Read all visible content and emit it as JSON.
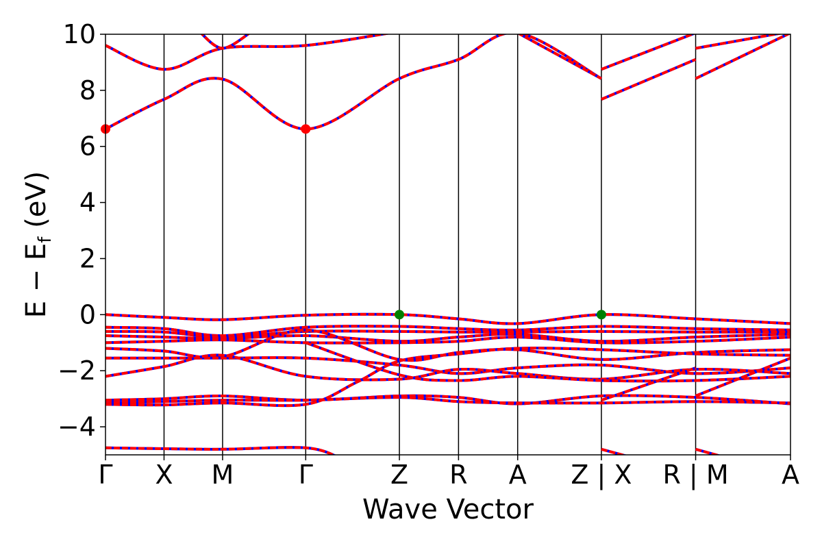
{
  "chart_data": {
    "type": "line",
    "title": "",
    "xlabel": "Wave Vector",
    "ylabel": "E − E_f (eV)",
    "ylabel_parts": {
      "main": "E − E",
      "sub": "f",
      "unit": " (eV)"
    },
    "ylim": [
      -5,
      10
    ],
    "yticks": [
      -4,
      -2,
      0,
      2,
      4,
      6,
      8,
      10
    ],
    "ytick_labels": [
      "−4",
      "−2",
      "0",
      "2",
      "4",
      "6",
      "8",
      "10"
    ],
    "xlim": [
      0,
      11.7
    ],
    "kpath": {
      "positions": [
        0,
        1,
        2,
        3.42,
        5.02,
        6.03,
        7.04,
        8.47,
        10.08,
        11.7
      ],
      "labels": [
        "Γ",
        "X",
        "M",
        "Γ",
        "Z",
        "R",
        "A",
        "Z | X",
        "R | M",
        "A"
      ]
    },
    "grid": false,
    "legend": "none",
    "colors": {
      "band_solid": "#0000ff",
      "band_dashed": "#ff0000",
      "cbm_marker": "#ff0000",
      "vbm_marker": "#008000",
      "kline": "#000000"
    },
    "markers": [
      {
        "x": 0,
        "y": 6.62,
        "kind": "cbm"
      },
      {
        "x": 3.42,
        "y": 6.62,
        "kind": "cbm"
      },
      {
        "x": 5.02,
        "y": 0.0,
        "kind": "vbm"
      },
      {
        "x": 8.47,
        "y": 0.0,
        "kind": "vbm"
      }
    ],
    "bands": [
      [
        [
          0,
          6.62
        ],
        [
          1,
          7.68
        ],
        [
          2,
          8.4
        ],
        [
          3.42,
          6.62
        ],
        [
          5.02,
          8.42
        ],
        [
          6.03,
          9.1
        ],
        [
          7.04,
          10.05
        ],
        [
          8.47,
          8.42
        ]
      ],
      [
        [
          0,
          9.6
        ],
        [
          1,
          8.75
        ],
        [
          2,
          9.5
        ],
        [
          3.42,
          9.6
        ],
        [
          5.02,
          10.1
        ]
      ],
      [
        [
          1.6,
          10.1
        ],
        [
          2,
          9.5
        ],
        [
          2.5,
          10.1
        ]
      ],
      [
        [
          7.04,
          10.05
        ],
        [
          8.47,
          8.42
        ]
      ],
      [
        [
          8.47,
          8.75
        ],
        [
          10.08,
          10.05
        ]
      ],
      [
        [
          8.47,
          7.68
        ],
        [
          10.08,
          9.1
        ]
      ],
      [
        [
          10.08,
          9.5
        ],
        [
          11.7,
          10.1
        ]
      ],
      [
        [
          10.08,
          8.42
        ],
        [
          11.7,
          10.05
        ]
      ],
      [
        [
          0,
          0.0
        ],
        [
          1,
          -0.1
        ],
        [
          2,
          -0.18
        ],
        [
          3.42,
          -0.02
        ],
        [
          5.02,
          0.0
        ],
        [
          6.03,
          -0.15
        ],
        [
          7.04,
          -0.32
        ],
        [
          8.47,
          0.0
        ],
        [
          10.08,
          -0.15
        ],
        [
          11.7,
          -0.32
        ]
      ],
      [
        [
          0,
          -0.45
        ],
        [
          1,
          -0.5
        ],
        [
          2,
          -0.75
        ],
        [
          3.42,
          -0.45
        ],
        [
          5.02,
          -0.42
        ],
        [
          6.03,
          -0.5
        ],
        [
          7.04,
          -0.55
        ],
        [
          8.47,
          -0.42
        ],
        [
          10.08,
          -0.5
        ],
        [
          11.7,
          -0.55
        ]
      ],
      [
        [
          0,
          -0.6
        ],
        [
          1,
          -0.62
        ],
        [
          2,
          -0.8
        ],
        [
          3.42,
          -0.6
        ],
        [
          5.02,
          -0.6
        ],
        [
          6.03,
          -0.62
        ],
        [
          7.04,
          -0.62
        ],
        [
          8.47,
          -0.6
        ],
        [
          10.08,
          -0.62
        ],
        [
          11.7,
          -0.62
        ]
      ],
      [
        [
          0,
          -0.75
        ],
        [
          1,
          -0.8
        ],
        [
          2,
          -0.85
        ],
        [
          3.42,
          -0.75
        ],
        [
          5.02,
          -0.95
        ],
        [
          6.03,
          -0.8
        ],
        [
          7.04,
          -0.7
        ],
        [
          8.47,
          -0.95
        ],
        [
          10.08,
          -0.8
        ],
        [
          11.7,
          -0.7
        ]
      ],
      [
        [
          0,
          -1.0
        ],
        [
          1,
          -0.95
        ],
        [
          2,
          -0.9
        ],
        [
          3.42,
          -1.0
        ],
        [
          5.02,
          -1.0
        ],
        [
          6.03,
          -0.95
        ],
        [
          7.04,
          -0.8
        ],
        [
          8.47,
          -1.0
        ],
        [
          10.08,
          -0.95
        ],
        [
          11.7,
          -0.8
        ]
      ],
      [
        [
          0,
          -1.2
        ],
        [
          1,
          -1.3
        ],
        [
          2,
          -1.5
        ],
        [
          3.42,
          -0.55
        ],
        [
          5.02,
          -1.6
        ],
        [
          6.03,
          -1.35
        ],
        [
          7.04,
          -1.25
        ],
        [
          8.47,
          -1.6
        ],
        [
          10.08,
          -1.35
        ],
        [
          11.7,
          -1.25
        ]
      ],
      [
        [
          0,
          -1.55
        ],
        [
          1,
          -1.55
        ],
        [
          2,
          -1.55
        ],
        [
          3.42,
          -1.55
        ],
        [
          5.02,
          -1.8
        ],
        [
          6.03,
          -2.1
        ],
        [
          7.04,
          -1.9
        ],
        [
          8.47,
          -1.8
        ],
        [
          10.08,
          -2.1
        ],
        [
          11.7,
          -1.9
        ]
      ],
      [
        [
          0,
          -2.2
        ],
        [
          1,
          -1.85
        ],
        [
          2,
          -1.45
        ],
        [
          3.42,
          -2.2
        ],
        [
          5.02,
          -2.3
        ],
        [
          6.03,
          -1.95
        ],
        [
          7.04,
          -2.1
        ],
        [
          8.47,
          -2.3
        ],
        [
          10.08,
          -1.95
        ],
        [
          11.7,
          -2.1
        ]
      ],
      [
        [
          3.42,
          -1.0
        ],
        [
          5.02,
          -2.15
        ],
        [
          6.03,
          -2.35
        ],
        [
          7.04,
          -2.2
        ],
        [
          8.47,
          -2.35
        ],
        [
          10.08,
          -2.35
        ],
        [
          11.7,
          -2.2
        ]
      ],
      [
        [
          0,
          -3.05
        ],
        [
          1,
          -3.0
        ],
        [
          2,
          -2.9
        ],
        [
          3.42,
          -3.05
        ],
        [
          5.02,
          -2.9
        ],
        [
          6.03,
          -2.95
        ],
        [
          7.04,
          -3.18
        ],
        [
          8.47,
          -2.9
        ],
        [
          10.08,
          -2.95
        ],
        [
          11.7,
          -3.18
        ]
      ],
      [
        [
          0,
          -3.15
        ],
        [
          1,
          -3.1
        ],
        [
          2,
          -3.05
        ],
        [
          3.42,
          -3.05
        ],
        [
          5.02,
          -2.95
        ],
        [
          6.03,
          -3.1
        ],
        [
          7.04,
          -3.15
        ],
        [
          8.47,
          -3.15
        ],
        [
          10.08,
          -3.1
        ],
        [
          11.7,
          -3.15
        ]
      ],
      [
        [
          0,
          -3.2
        ],
        [
          1,
          -3.22
        ],
        [
          2,
          -3.15
        ],
        [
          3.42,
          -3.2
        ],
        [
          4.3,
          -2.4
        ],
        [
          5.02,
          -1.65
        ],
        [
          6.03,
          -1.4
        ],
        [
          7.04,
          -1.2
        ],
        [
          8.47,
          -1.25
        ],
        [
          10.08,
          -1.4
        ],
        [
          11.7,
          -1.45
        ]
      ],
      [
        [
          8.47,
          -3.05
        ],
        [
          10.08,
          -1.9
        ]
      ],
      [
        [
          10.08,
          -2.9
        ],
        [
          11.7,
          -1.55
        ]
      ],
      [
        [
          0,
          -4.75
        ],
        [
          1,
          -4.78
        ],
        [
          2,
          -4.8
        ],
        [
          3.42,
          -4.75
        ],
        [
          4.0,
          -5.1
        ]
      ],
      [
        [
          8.47,
          -4.8
        ],
        [
          9.0,
          -5.1
        ]
      ],
      [
        [
          10.08,
          -4.8
        ],
        [
          10.6,
          -5.1
        ]
      ]
    ]
  }
}
